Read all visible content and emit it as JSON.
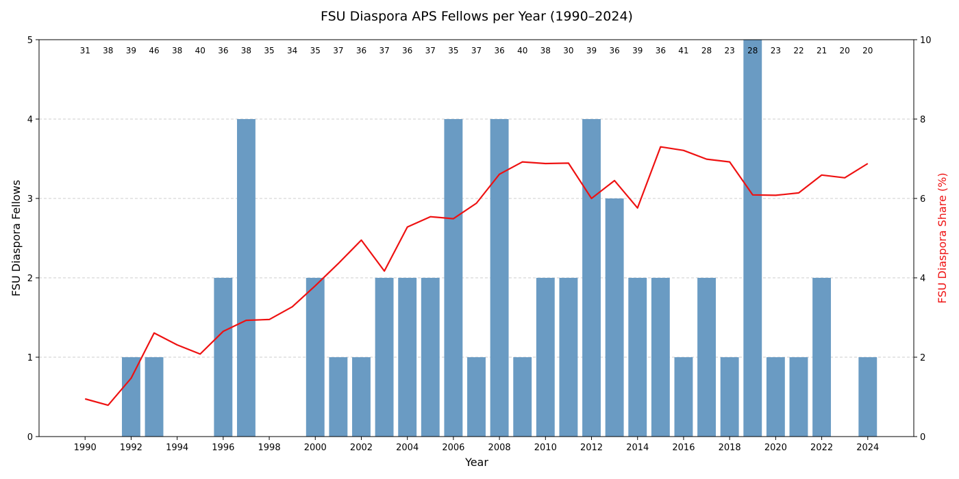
{
  "chart_data": {
    "type": "bar",
    "title": "FSU Diaspora APS Fellows per Year (1990–2024)",
    "xlabel": "Year",
    "ylabel": "FSU Diaspora Fellows",
    "y2label": "FSU Diaspora Share (%)",
    "x": [
      1990,
      1991,
      1992,
      1993,
      1994,
      1995,
      1996,
      1997,
      1998,
      1999,
      2000,
      2001,
      2002,
      2003,
      2004,
      2005,
      2006,
      2007,
      2008,
      2009,
      2010,
      2011,
      2012,
      2013,
      2014,
      2015,
      2016,
      2017,
      2018,
      2019,
      2020,
      2021,
      2022,
      2023,
      2024
    ],
    "xlim": [
      1988,
      2026
    ],
    "xticks": [
      1990,
      1992,
      1994,
      1996,
      1998,
      2000,
      2002,
      2004,
      2006,
      2008,
      2010,
      2012,
      2014,
      2016,
      2018,
      2020,
      2022,
      2024
    ],
    "ylim": [
      0,
      5
    ],
    "yticks": [
      0,
      1,
      2,
      3,
      4,
      5
    ],
    "y2lim": [
      0,
      10
    ],
    "y2ticks": [
      0,
      2,
      4,
      6,
      8,
      10
    ],
    "grid": "horizontal dashed",
    "series": [
      {
        "kind": "bar",
        "axis": "left",
        "color": "#6a9bc3",
        "values": [
          0,
          0,
          1,
          1,
          0,
          0,
          2,
          4,
          0,
          0,
          2,
          1,
          1,
          2,
          2,
          2,
          4,
          1,
          4,
          1,
          2,
          2,
          4,
          3,
          2,
          2,
          1,
          2,
          1,
          5,
          1,
          1,
          2,
          0,
          1
        ]
      },
      {
        "kind": "line",
        "axis": "right",
        "color": "#ee1111",
        "values": [
          0.95,
          0.79,
          1.47,
          2.61,
          2.31,
          2.08,
          2.65,
          2.93,
          2.95,
          3.27,
          3.8,
          4.36,
          4.95,
          4.17,
          5.28,
          5.54,
          5.49,
          5.88,
          6.61,
          6.92,
          6.88,
          6.89,
          6.0,
          6.45,
          5.76,
          7.3,
          7.21,
          6.99,
          6.92,
          6.09,
          6.08,
          6.14,
          6.59,
          6.52,
          6.88
        ]
      }
    ],
    "annotations": [
      31,
      38,
      39,
      46,
      38,
      40,
      36,
      38,
      35,
      34,
      35,
      37,
      36,
      37,
      36,
      37,
      35,
      37,
      36,
      40,
      38,
      30,
      39,
      36,
      39,
      36,
      41,
      28,
      23,
      28,
      23,
      22,
      21,
      20,
      20
    ]
  }
}
